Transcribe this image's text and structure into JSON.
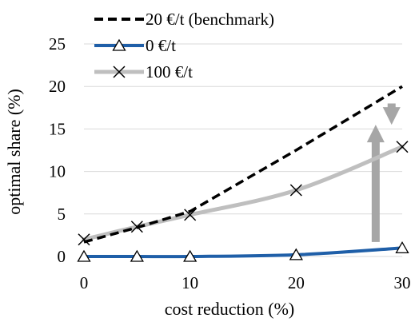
{
  "chart_data": {
    "type": "line",
    "title": "",
    "xlabel": "cost reduction (%)",
    "ylabel": "optimal share (%)",
    "x": [
      0,
      5,
      10,
      20,
      30
    ],
    "xticks": [
      "0",
      "10",
      "20",
      "30"
    ],
    "yticks": [
      "0",
      "5",
      "10",
      "15",
      "20",
      "25"
    ],
    "xlim": [
      0,
      30
    ],
    "ylim": [
      0,
      25
    ],
    "grid": "horizontal",
    "legend_position": "top-center",
    "series": [
      {
        "name": "20 €/t (benchmark)",
        "values": [
          1.7,
          3.4,
          5.3,
          12.5,
          20.0
        ],
        "color": "#000000",
        "style": "dashed",
        "marker": "none"
      },
      {
        "name": "0 €/t",
        "values": [
          0.0,
          0.0,
          0.0,
          0.2,
          1.0
        ],
        "color": "#1f5fa8",
        "style": "solid",
        "marker": "triangle"
      },
      {
        "name": "100 €/t",
        "values": [
          2.0,
          3.5,
          4.9,
          7.8,
          12.9
        ],
        "color": "#bfbfbf",
        "style": "solid",
        "marker": "x"
      }
    ],
    "annotations": [
      {
        "type": "arrow",
        "color": "#a6a6a6",
        "x": 27.5,
        "from": 1.7,
        "to": 15.5
      },
      {
        "type": "arrow",
        "color": "#a6a6a6",
        "x": 29.0,
        "from": 18.0,
        "to": 15.5
      }
    ]
  }
}
